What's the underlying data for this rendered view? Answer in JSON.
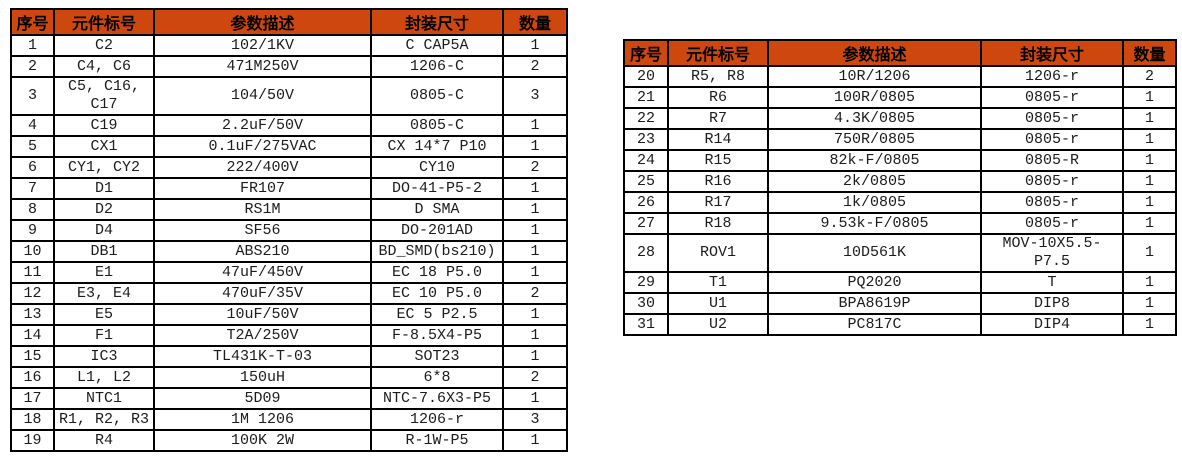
{
  "header_bg_color": "#CE470E",
  "grid_color": "#000000",
  "columns": [
    "序号",
    "元件标号",
    "参数描述",
    "封装尺寸",
    "数量"
  ],
  "tables": [
    {
      "name": "bom-items-1-19",
      "rows": [
        [
          "1",
          "C2",
          "102/1KV",
          "C CAP5A",
          "1"
        ],
        [
          "2",
          "C4, C6",
          "471M250V",
          "1206-C",
          "2"
        ],
        [
          "3",
          "C5, C16,\nC17",
          "104/50V",
          "0805-C",
          "3"
        ],
        [
          "4",
          "C19",
          "2.2uF/50V",
          "0805-C",
          "1"
        ],
        [
          "5",
          "CX1",
          "0.1uF/275VAC",
          "CX 14*7 P10",
          "1"
        ],
        [
          "6",
          "CY1, CY2",
          "222/400V",
          "CY10",
          "2"
        ],
        [
          "7",
          "D1",
          "FR107",
          "DO-41-P5-2",
          "1"
        ],
        [
          "8",
          "D2",
          "RS1M",
          "D SMA",
          "1"
        ],
        [
          "9",
          "D4",
          "SF56",
          "DO-201AD",
          "1"
        ],
        [
          "10",
          "DB1",
          "ABS210",
          "BD_SMD(bs210)",
          "1"
        ],
        [
          "11",
          "E1",
          "47uF/450V",
          "EC 18 P5.0",
          "1"
        ],
        [
          "12",
          "E3, E4",
          "470uF/35V",
          "EC 10  P5.0",
          "2"
        ],
        [
          "13",
          "E5",
          "10uF/50V",
          "EC 5 P2.5",
          "1"
        ],
        [
          "14",
          "F1",
          "T2A/250V",
          "F-8.5X4-P5",
          "1"
        ],
        [
          "15",
          "IC3",
          "TL431K-T-03",
          "SOT23",
          "1"
        ],
        [
          "16",
          "L1, L2",
          "150uH",
          "6*8",
          "2"
        ],
        [
          "17",
          "NTC1",
          "5D09",
          "NTC-7.6X3-P5",
          "1"
        ],
        [
          "18",
          "R1, R2, R3",
          "1M 1206",
          "1206-r",
          "3"
        ],
        [
          "19",
          "R4",
          "100K 2W",
          "R-1W-P5",
          "1"
        ]
      ]
    },
    {
      "name": "bom-items-20-31",
      "rows": [
        [
          "20",
          "R5, R8",
          "10R/1206",
          "1206-r",
          "2"
        ],
        [
          "21",
          "R6",
          "100R/0805",
          "0805-r",
          "1"
        ],
        [
          "22",
          "R7",
          "4.3K/0805",
          "0805-r",
          "1"
        ],
        [
          "23",
          "R14",
          "750R/0805",
          "0805-r",
          "1"
        ],
        [
          "24",
          "R15",
          "82k-F/0805",
          "0805-R",
          "1"
        ],
        [
          "25",
          "R16",
          "2k/0805",
          "0805-r",
          "1"
        ],
        [
          "26",
          "R17",
          "1k/0805",
          "0805-r",
          "1"
        ],
        [
          "27",
          "R18",
          "9.53k-F/0805",
          "0805-r",
          "1"
        ],
        [
          "28",
          "ROV1",
          "10D561K",
          "MOV-10X5.5-\nP7.5",
          "1"
        ],
        [
          "29",
          "T1",
          "PQ2020",
          "T",
          "1"
        ],
        [
          "30",
          "U1",
          "BPA8619P",
          "DIP8",
          "1"
        ],
        [
          "31",
          "U2",
          "PC817C",
          "DIP4",
          "1"
        ]
      ]
    }
  ]
}
